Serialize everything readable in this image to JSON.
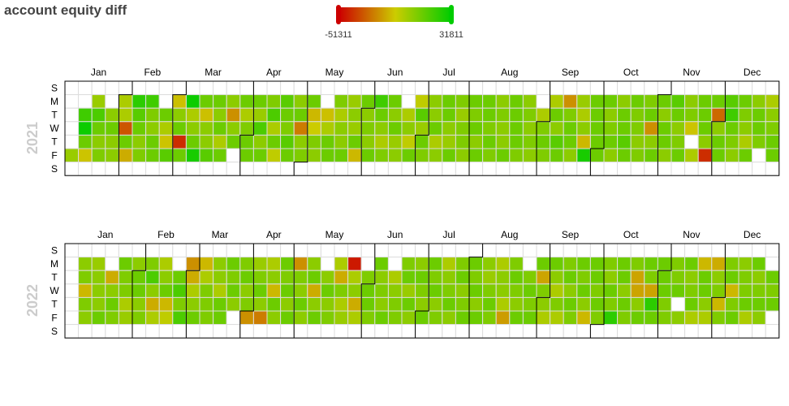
{
  "title": "account equity diff",
  "legend": {
    "min_label": "-51311",
    "max_label": "31811",
    "colors": [
      "#cc0000",
      "#cccc00",
      "#00cc00"
    ]
  },
  "colors": {
    "missing": "#ffffff",
    "grid": "#dddddd",
    "month_border": "#000000",
    "year_label": "#cccccc"
  },
  "chart_data": {
    "type": "heatmap",
    "title": "account equity diff",
    "scale": {
      "min": -51311,
      "max": 31811
    },
    "weekdays": [
      "S",
      "M",
      "T",
      "W",
      "T",
      "F",
      "S"
    ],
    "years": [
      {
        "year": "2021",
        "months": [
          "Jan",
          "Feb",
          "Mar",
          "Apr",
          "May",
          "Jun",
          "Jul",
          "Aug",
          "Sep",
          "Oct",
          "Nov",
          "Dec"
        ],
        "weeks": [
          [
            null,
            null,
            null,
            null,
            null,
            8000,
            null
          ],
          [
            null,
            null,
            22000,
            30000,
            15000,
            -2000,
            null
          ],
          [
            null,
            8000,
            20000,
            15000,
            10000,
            12000,
            null
          ],
          [
            null,
            null,
            10000,
            15000,
            10000,
            10000,
            null
          ],
          [
            null,
            5000,
            5000,
            -30000,
            15000,
            -8000,
            null
          ],
          [
            null,
            25000,
            18000,
            15000,
            10000,
            12000,
            null
          ],
          [
            null,
            22000,
            12000,
            10000,
            15000,
            15000,
            null
          ],
          [
            null,
            null,
            15000,
            5000,
            -2000,
            18000,
            null
          ],
          [
            null,
            -3000,
            10000,
            15000,
            -40000,
            15000,
            null
          ],
          [
            null,
            30000,
            5000,
            10000,
            15000,
            28000,
            null
          ],
          [
            null,
            15000,
            -3000,
            10000,
            10000,
            18000,
            null
          ],
          [
            null,
            15000,
            10000,
            15000,
            5000,
            15000,
            null
          ],
          [
            null,
            10000,
            -15000,
            10000,
            15000,
            null,
            null
          ],
          [
            null,
            15000,
            5000,
            12000,
            15000,
            15000,
            null
          ],
          [
            null,
            15000,
            8000,
            20000,
            10000,
            15000,
            null
          ],
          [
            null,
            12000,
            20000,
            5000,
            15000,
            2000,
            null
          ],
          [
            null,
            18000,
            15000,
            12000,
            18000,
            15000,
            null
          ],
          [
            null,
            10000,
            15000,
            -20000,
            10000,
            12000,
            null
          ],
          [
            null,
            15000,
            -5000,
            0,
            12000,
            10000,
            null
          ],
          [
            null,
            null,
            -3000,
            5000,
            15000,
            15000,
            null
          ],
          [
            null,
            12000,
            5000,
            10000,
            10000,
            15000,
            null
          ],
          [
            null,
            8000,
            10000,
            8000,
            15000,
            -5000,
            null
          ],
          [
            null,
            15000,
            10000,
            12000,
            10000,
            15000,
            null
          ],
          [
            null,
            22000,
            15000,
            10000,
            5000,
            12000,
            null
          ],
          [
            null,
            15000,
            10000,
            15000,
            8000,
            10000,
            null
          ],
          [
            null,
            null,
            5000,
            10000,
            2000,
            15000,
            null
          ],
          [
            null,
            2000,
            18000,
            8000,
            15000,
            12000,
            null
          ],
          [
            null,
            10000,
            10000,
            15000,
            5000,
            10000,
            null
          ],
          [
            null,
            15000,
            15000,
            10000,
            8000,
            15000,
            null
          ],
          [
            null,
            12000,
            8000,
            12000,
            12000,
            10000,
            null
          ],
          [
            null,
            15000,
            12000,
            15000,
            10000,
            15000,
            null
          ],
          [
            null,
            15000,
            15000,
            12000,
            15000,
            12000,
            null
          ],
          [
            null,
            10000,
            12000,
            10000,
            10000,
            15000,
            null
          ],
          [
            null,
            15000,
            15000,
            15000,
            15000,
            12000,
            null
          ],
          [
            null,
            10000,
            12000,
            10000,
            12000,
            10000,
            null
          ],
          [
            null,
            null,
            5000,
            12000,
            15000,
            12000,
            null
          ],
          [
            null,
            5000,
            15000,
            10000,
            18000,
            15000,
            null
          ],
          [
            null,
            -15000,
            12000,
            15000,
            15000,
            10000,
            null
          ],
          [
            null,
            8000,
            5000,
            10000,
            -5000,
            28000,
            null
          ],
          [
            null,
            15000,
            15000,
            15000,
            15000,
            15000,
            null
          ],
          [
            null,
            15000,
            10000,
            12000,
            15000,
            10000,
            null
          ],
          [
            null,
            10000,
            15000,
            15000,
            18000,
            15000,
            null
          ],
          [
            null,
            15000,
            12000,
            12000,
            10000,
            12000,
            null
          ],
          [
            null,
            12000,
            15000,
            -15000,
            10000,
            15000,
            null
          ],
          [
            null,
            15000,
            10000,
            15000,
            15000,
            10000,
            null
          ],
          [
            null,
            18000,
            15000,
            10000,
            12000,
            15000,
            null
          ],
          [
            null,
            10000,
            12000,
            -2000,
            null,
            5000,
            null
          ],
          [
            null,
            15000,
            15000,
            15000,
            10000,
            -40000,
            null
          ],
          [
            null,
            15000,
            -25000,
            10000,
            15000,
            15000,
            null
          ],
          [
            null,
            18000,
            22000,
            15000,
            12000,
            10000,
            null
          ],
          [
            null,
            15000,
            12000,
            10000,
            5000,
            15000,
            null
          ],
          [
            null,
            10000,
            15000,
            15000,
            12000,
            null,
            null
          ],
          [
            null,
            5000,
            10000,
            12000,
            15000,
            15000,
            null
          ]
        ]
      },
      {
        "year": "2022",
        "months": [
          "Jan",
          "Feb",
          "Mar",
          "Apr",
          "May",
          "Jun",
          "Jul",
          "Aug",
          "Sep",
          "Oct",
          "Nov",
          "Dec"
        ],
        "weeks": [
          [
            null,
            null,
            null,
            null,
            null,
            null,
            null
          ],
          [
            null,
            10000,
            12000,
            -5000,
            12000,
            10000,
            null
          ],
          [
            null,
            8000,
            10000,
            10000,
            10000,
            15000,
            null
          ],
          [
            null,
            null,
            -8000,
            10000,
            15000,
            12000,
            null
          ],
          [
            null,
            15000,
            12000,
            12000,
            5000,
            8000,
            null
          ],
          [
            null,
            10000,
            15000,
            15000,
            10000,
            12000,
            null
          ],
          [
            null,
            12000,
            20000,
            10000,
            -8000,
            5000,
            null
          ],
          [
            null,
            5000,
            10000,
            15000,
            -5000,
            2000,
            null
          ],
          [
            null,
            null,
            15000,
            20000,
            12000,
            20000,
            null
          ],
          [
            null,
            -15000,
            -8000,
            5000,
            10000,
            15000,
            null
          ],
          [
            null,
            -5000,
            5000,
            12000,
            12000,
            12000,
            null
          ],
          [
            null,
            10000,
            10000,
            5000,
            15000,
            15000,
            null
          ],
          [
            null,
            15000,
            12000,
            15000,
            10000,
            null,
            null
          ],
          [
            null,
            12000,
            15000,
            10000,
            12000,
            -15000,
            null
          ],
          [
            null,
            8000,
            12000,
            15000,
            10000,
            -20000,
            null
          ],
          [
            null,
            5000,
            10000,
            -5000,
            15000,
            10000,
            null
          ],
          [
            null,
            15000,
            12000,
            15000,
            10000,
            15000,
            null
          ],
          [
            null,
            -15000,
            12000,
            10000,
            15000,
            10000,
            null
          ],
          [
            null,
            10000,
            15000,
            -8000,
            10000,
            15000,
            null
          ],
          [
            null,
            null,
            10000,
            15000,
            10000,
            12000,
            null
          ],
          [
            null,
            5000,
            -8000,
            12000,
            5000,
            8000,
            null
          ],
          [
            null,
            -45000,
            5000,
            10000,
            -8000,
            5000,
            null
          ],
          [
            null,
            null,
            12000,
            15000,
            15000,
            12000,
            null
          ],
          [
            null,
            15000,
            10000,
            12000,
            10000,
            15000,
            null
          ],
          [
            null,
            null,
            5000,
            10000,
            12000,
            12000,
            null
          ],
          [
            null,
            12000,
            15000,
            8000,
            15000,
            10000,
            null
          ],
          [
            null,
            10000,
            15000,
            12000,
            10000,
            15000,
            null
          ],
          [
            null,
            15000,
            12000,
            15000,
            10000,
            12000,
            null
          ],
          [
            null,
            5000,
            10000,
            12000,
            15000,
            10000,
            null
          ],
          [
            null,
            12000,
            15000,
            10000,
            12000,
            15000,
            null
          ],
          [
            null,
            15000,
            12000,
            15000,
            10000,
            15000,
            null
          ],
          [
            null,
            10000,
            8000,
            12000,
            15000,
            12000,
            null
          ],
          [
            null,
            5000,
            10000,
            10000,
            5000,
            -12000,
            null
          ],
          [
            null,
            12000,
            15000,
            12000,
            10000,
            15000,
            null
          ],
          [
            null,
            null,
            12000,
            15000,
            12000,
            15000,
            null
          ],
          [
            null,
            15000,
            -10000,
            12000,
            10000,
            5000,
            null
          ],
          [
            null,
            15000,
            10000,
            5000,
            12000,
            5000,
            null
          ],
          [
            null,
            12000,
            15000,
            10000,
            15000,
            12000,
            null
          ],
          [
            null,
            15000,
            12000,
            15000,
            10000,
            -5000,
            null
          ],
          [
            null,
            15000,
            15000,
            12000,
            15000,
            12000,
            null
          ],
          [
            null,
            12000,
            10000,
            15000,
            12000,
            25000,
            null
          ],
          [
            null,
            15000,
            15000,
            10000,
            15000,
            12000,
            null
          ],
          [
            null,
            12000,
            -10000,
            -10000,
            10000,
            15000,
            null
          ],
          [
            null,
            15000,
            12000,
            -10000,
            25000,
            15000,
            null
          ],
          [
            null,
            15000,
            15000,
            15000,
            12000,
            12000,
            null
          ],
          [
            null,
            12000,
            12000,
            15000,
            null,
            10000,
            null
          ],
          [
            null,
            15000,
            10000,
            12000,
            15000,
            5000,
            null
          ],
          [
            null,
            -5000,
            15000,
            15000,
            10000,
            5000,
            null
          ],
          [
            null,
            -8000,
            10000,
            12000,
            -5000,
            12000,
            null
          ],
          [
            null,
            12000,
            15000,
            -5000,
            12000,
            15000,
            null
          ],
          [
            null,
            10000,
            12000,
            12000,
            15000,
            5000,
            null
          ],
          [
            null,
            15000,
            10000,
            12000,
            15000,
            10000,
            null
          ],
          [
            null,
            null,
            15000,
            12000,
            15000,
            null,
            null
          ]
        ]
      }
    ]
  }
}
